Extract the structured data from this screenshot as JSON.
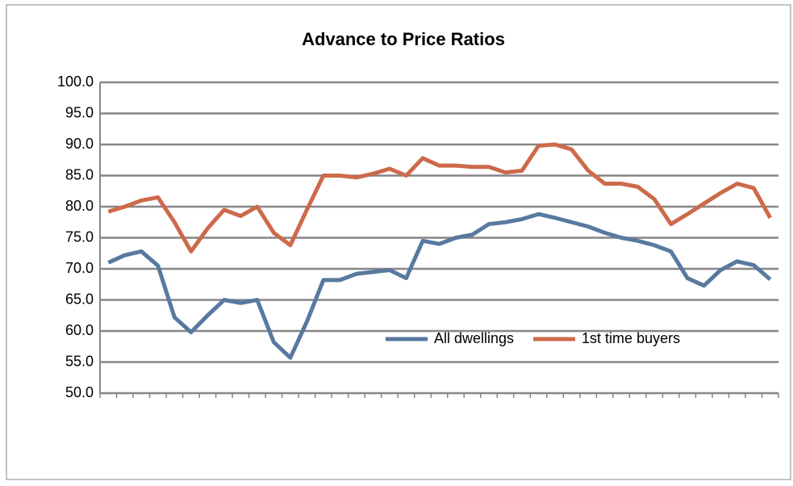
{
  "chart_data": {
    "type": "line",
    "title": "Advance to Price Ratios",
    "categories": [
      null,
      null,
      null,
      null,
      null,
      null,
      null,
      null,
      null,
      null,
      null,
      null,
      null,
      null,
      null,
      null,
      null,
      null,
      null,
      null,
      null,
      null,
      null,
      null,
      null,
      null,
      null,
      null,
      null,
      null,
      null,
      null,
      null,
      null,
      null,
      null,
      null,
      null,
      null,
      null,
      null
    ],
    "series": [
      {
        "name": "All dwellings",
        "color": "#58799f",
        "values": [
          71.0,
          72.2,
          72.8,
          70.5,
          62.2,
          59.8,
          62.5,
          65.0,
          64.5,
          65.0,
          58.2,
          55.7,
          61.5,
          68.2,
          68.2,
          69.2,
          69.5,
          69.8,
          68.5,
          74.5,
          74.0,
          75.0,
          75.5,
          77.2,
          77.5,
          78.0,
          78.8,
          78.2,
          77.5,
          76.8,
          75.8,
          75.0,
          74.5,
          73.8,
          72.8,
          68.5,
          67.3,
          69.8,
          71.2,
          70.6,
          68.3
        ]
      },
      {
        "name": "1st time buyers",
        "color": "#cd6a4b",
        "values": [
          79.2,
          80.0,
          81.0,
          81.5,
          77.5,
          72.8,
          76.5,
          79.5,
          78.5,
          80.0,
          75.8,
          73.8,
          79.5,
          85.0,
          85.0,
          84.7,
          85.3,
          86.1,
          85.0,
          87.8,
          86.6,
          86.6,
          86.4,
          86.4,
          85.5,
          85.8,
          89.8,
          90.0,
          89.2,
          85.8,
          83.7,
          83.7,
          83.2,
          81.2,
          77.2,
          78.8,
          80.5,
          82.2,
          83.7,
          83.0,
          78.2
        ]
      }
    ],
    "ylim": [
      50,
      100
    ],
    "yticks": [
      {
        "value": 50,
        "label": "50.0"
      },
      {
        "value": 55,
        "label": "55.0"
      },
      {
        "value": 60,
        "label": "60.0"
      },
      {
        "value": 65,
        "label": "65.0"
      },
      {
        "value": 70,
        "label": "70.0"
      },
      {
        "value": 75,
        "label": "75.0"
      },
      {
        "value": 80,
        "label": "80.0"
      },
      {
        "value": 85,
        "label": "85.0"
      },
      {
        "value": 90,
        "label": "90.0"
      },
      {
        "value": 95,
        "label": "95.0"
      },
      {
        "value": 100,
        "label": "100.0"
      }
    ],
    "grid": true,
    "legend": "bottom-right"
  }
}
